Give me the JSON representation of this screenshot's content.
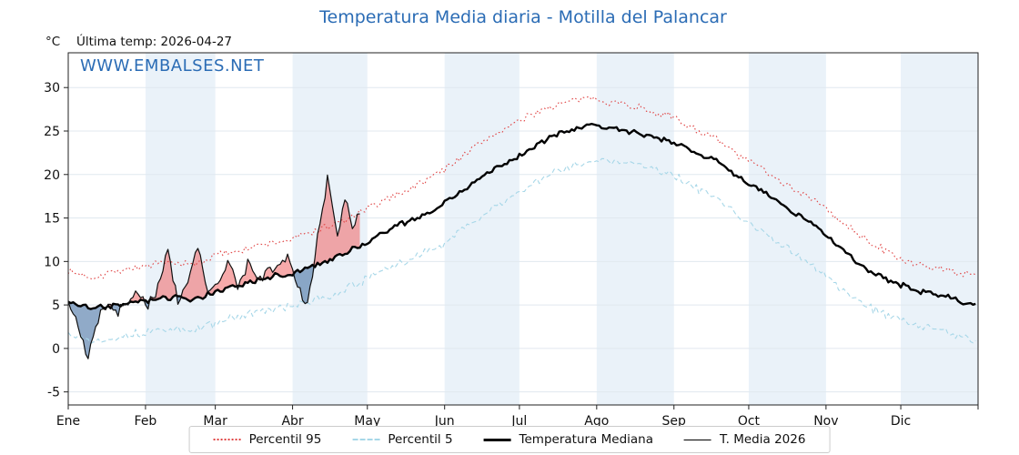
{
  "title": "Temperatura Media diaria - Motilla del Palancar",
  "y_unit_label": "°C",
  "last_temp_label": "Última temp: 2026-04-27",
  "watermark": "WWW.EMBALSES.NET",
  "colors": {
    "title_blue": "#2b6cb5",
    "band_shade": "#eaf2f9",
    "grid": "#e0e8ef",
    "frame": "#222222",
    "p95_red": "#e04545",
    "p5_blue": "#a7d7e8",
    "median_black": "#000000",
    "t2026_black": "#111111",
    "fill_above": "rgba(240,100,100,0.55)",
    "fill_below": "rgba(85,125,170,0.65)"
  },
  "chart_data": {
    "type": "line",
    "title": "Temperatura Media diaria - Motilla del Palancar",
    "ylabel": "°C",
    "ylim": [
      -6.5,
      34
    ],
    "yticks": [
      -5,
      0,
      5,
      10,
      15,
      20,
      25,
      30
    ],
    "x_tick_labels": [
      "Ene",
      "Feb",
      "Mar",
      "Abr",
      "May",
      "Jun",
      "Jul",
      "Ago",
      "Sep",
      "Oct",
      "Nov",
      "Dic"
    ],
    "month_days": [
      31,
      28,
      31,
      30,
      31,
      30,
      31,
      31,
      30,
      31,
      30,
      31
    ],
    "legend": [
      "Percentil 95",
      "Percentil 5",
      "Temperatura Mediana",
      "T. Media 2026"
    ],
    "series": [
      {
        "name": "Percentil 95",
        "style": "dotted",
        "color": "#e04545",
        "noise": 0.55,
        "seed": 7,
        "end_day": 364,
        "days": [
          0,
          10,
          20,
          30,
          40,
          50,
          60,
          70,
          80,
          90,
          100,
          110,
          120,
          130,
          140,
          150,
          160,
          170,
          180,
          190,
          200,
          210,
          220,
          230,
          240,
          250,
          260,
          270,
          280,
          290,
          300,
          310,
          320,
          330,
          340,
          350,
          360,
          364
        ],
        "values": [
          8.8,
          8.2,
          9.0,
          9.4,
          9.8,
          9.6,
          10.8,
          11.4,
          12.0,
          12.6,
          13.6,
          14.6,
          16.0,
          17.5,
          18.8,
          20.5,
          22.5,
          24.5,
          26.0,
          27.5,
          28.3,
          28.8,
          28.3,
          27.6,
          26.8,
          25.5,
          24.0,
          22.0,
          20.5,
          18.5,
          17.0,
          14.5,
          12.5,
          10.8,
          9.6,
          9.2,
          8.5,
          8.3
        ]
      },
      {
        "name": "Percentil 5",
        "style": "dashed",
        "color": "#a7d7e8",
        "noise": 0.6,
        "seed": 13,
        "end_day": 364,
        "days": [
          0,
          10,
          20,
          30,
          40,
          50,
          60,
          70,
          80,
          90,
          100,
          110,
          120,
          130,
          140,
          150,
          160,
          170,
          180,
          190,
          200,
          210,
          220,
          230,
          240,
          250,
          260,
          270,
          280,
          290,
          300,
          310,
          320,
          330,
          340,
          350,
          360,
          364
        ],
        "values": [
          1.8,
          0.8,
          1.4,
          1.8,
          2.2,
          2.0,
          3.0,
          3.8,
          4.4,
          4.8,
          5.6,
          6.6,
          8.0,
          9.4,
          10.6,
          12.0,
          14.0,
          16.0,
          17.8,
          19.5,
          20.8,
          21.8,
          21.5,
          21.0,
          20.2,
          18.8,
          17.2,
          15.0,
          13.2,
          11.2,
          9.2,
          6.8,
          4.8,
          3.6,
          2.6,
          2.2,
          1.2,
          1.0
        ]
      },
      {
        "name": "Temperatura Mediana",
        "style": "solid-thick",
        "color": "#000000",
        "noise": 0.4,
        "seed": 3,
        "end_day": 364,
        "days": [
          0,
          10,
          20,
          30,
          40,
          50,
          60,
          70,
          80,
          90,
          100,
          110,
          120,
          130,
          140,
          150,
          160,
          170,
          180,
          190,
          200,
          210,
          220,
          230,
          240,
          250,
          260,
          270,
          280,
          290,
          300,
          310,
          320,
          330,
          340,
          350,
          360,
          364
        ],
        "values": [
          5.3,
          4.6,
          5.0,
          5.4,
          5.8,
          5.6,
          6.6,
          7.4,
          8.2,
          8.6,
          9.6,
          10.8,
          12.2,
          13.8,
          15.0,
          16.5,
          18.5,
          20.5,
          22.0,
          23.8,
          25.0,
          25.8,
          25.3,
          24.6,
          24.0,
          22.8,
          21.5,
          19.5,
          17.8,
          15.8,
          14.0,
          11.5,
          9.2,
          7.8,
          6.6,
          6.2,
          5.2,
          5.0
        ]
      },
      {
        "name": "T. Media 2026",
        "style": "solid-thin",
        "color": "#111111",
        "noise": 0.9,
        "seed": 21,
        "end_day": 117,
        "fill_vs": "Temperatura Mediana",
        "fill_above": "rgba(240,100,100,0.55)",
        "fill_below": "rgba(85,125,170,0.65)",
        "days": [
          0,
          4,
          8,
          12,
          16,
          20,
          24,
          28,
          32,
          36,
          40,
          44,
          48,
          52,
          56,
          60,
          64,
          68,
          72,
          76,
          80,
          84,
          88,
          92,
          96,
          100,
          104,
          108,
          111,
          114,
          117
        ],
        "values": [
          5.5,
          2.5,
          -0.8,
          3.5,
          5.2,
          4.0,
          5.6,
          6.6,
          5.0,
          7.0,
          11.5,
          5.2,
          7.6,
          11.8,
          6.2,
          7.2,
          10.0,
          7.2,
          9.6,
          8.2,
          8.8,
          9.2,
          10.6,
          7.0,
          5.2,
          12.5,
          19.5,
          13.0,
          17.3,
          13.8,
          15.5
        ]
      }
    ]
  }
}
